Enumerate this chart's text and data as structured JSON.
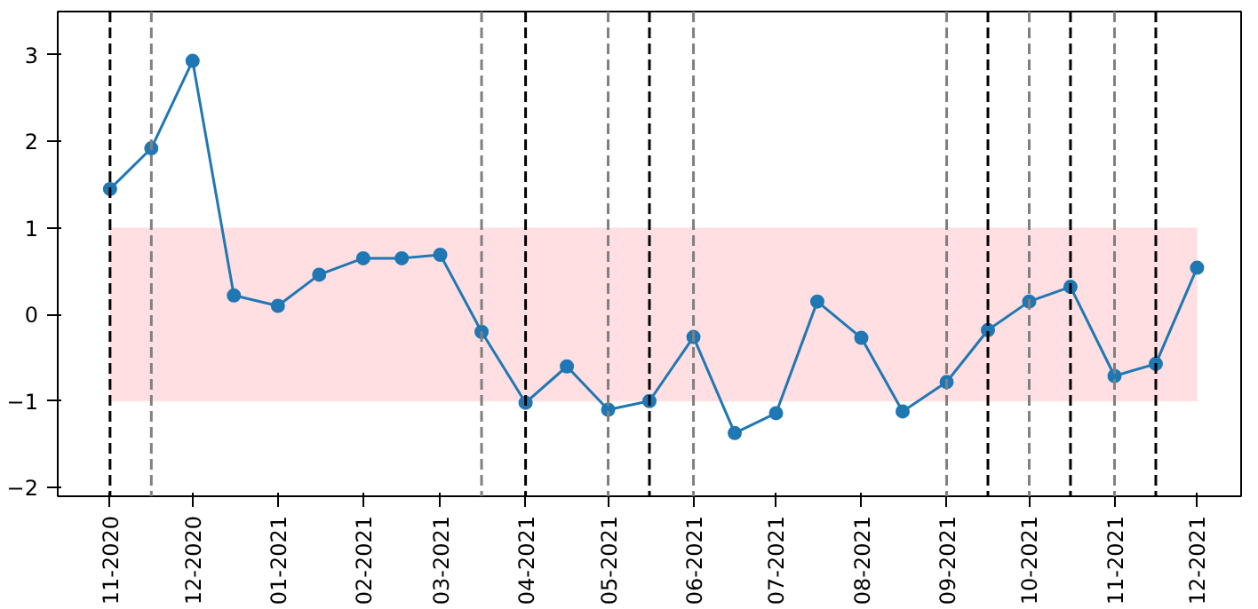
{
  "chart_data": {
    "type": "line",
    "marker": "circle",
    "line_style": "solid",
    "grid": false,
    "x": [
      "2020-11-01",
      "2020-11-16",
      "2020-12-01",
      "2020-12-16",
      "2021-01-01",
      "2021-01-16",
      "2021-02-01",
      "2021-02-15",
      "2021-03-01",
      "2021-03-16",
      "2021-04-01",
      "2021-04-16",
      "2021-05-01",
      "2021-05-16",
      "2021-06-01",
      "2021-06-16",
      "2021-07-01",
      "2021-07-16",
      "2021-08-01",
      "2021-08-16",
      "2021-09-01",
      "2021-09-16",
      "2021-10-01",
      "2021-10-16",
      "2021-11-01",
      "2021-11-16",
      "2021-12-01"
    ],
    "series": [
      {
        "color": "#1f77b4",
        "values": [
          1.45,
          1.92,
          2.93,
          0.22,
          0.1,
          0.46,
          0.65,
          0.65,
          0.69,
          -0.2,
          -1.02,
          -0.6,
          -1.1,
          -1.0,
          -0.26,
          -1.37,
          -1.14,
          0.15,
          -0.27,
          -1.12,
          -0.78,
          -0.18,
          0.15,
          0.32,
          -0.71,
          -0.57,
          0.54
        ]
      }
    ],
    "xlim": [
      "2020-10-13",
      "2021-12-17"
    ],
    "ylim": [
      -2.1,
      3.5
    ],
    "xticks": [
      {
        "value": "2020-11-01",
        "label": "11-2020"
      },
      {
        "value": "2020-12-01",
        "label": "12-2020"
      },
      {
        "value": "2021-01-01",
        "label": "01-2021"
      },
      {
        "value": "2021-02-01",
        "label": "02-2021"
      },
      {
        "value": "2021-03-01",
        "label": "03-2021"
      },
      {
        "value": "2021-04-01",
        "label": "04-2021"
      },
      {
        "value": "2021-05-01",
        "label": "05-2021"
      },
      {
        "value": "2021-06-01",
        "label": "06-2021"
      },
      {
        "value": "2021-07-01",
        "label": "07-2021"
      },
      {
        "value": "2021-08-01",
        "label": "08-2021"
      },
      {
        "value": "2021-09-01",
        "label": "09-2021"
      },
      {
        "value": "2021-10-01",
        "label": "10-2021"
      },
      {
        "value": "2021-11-01",
        "label": "11-2021"
      },
      {
        "value": "2021-12-01",
        "label": "12-2021"
      }
    ],
    "yticks": [
      -2,
      -1,
      0,
      1,
      2,
      3
    ],
    "bands": [
      {
        "axis": "y",
        "from": -1,
        "to": 1,
        "color": "#ffdfe1"
      }
    ],
    "ref_lines": [
      {
        "axis": "x",
        "value": "2020-11-01",
        "color": "#000000",
        "line_style": "dashed"
      },
      {
        "axis": "x",
        "value": "2020-11-16",
        "color": "#808080",
        "line_style": "dashed"
      },
      {
        "axis": "x",
        "value": "2021-03-16",
        "color": "#808080",
        "line_style": "dashed"
      },
      {
        "axis": "x",
        "value": "2021-04-01",
        "color": "#000000",
        "line_style": "dashed"
      },
      {
        "axis": "x",
        "value": "2021-05-01",
        "color": "#808080",
        "line_style": "dashed"
      },
      {
        "axis": "x",
        "value": "2021-05-16",
        "color": "#000000",
        "line_style": "dashed"
      },
      {
        "axis": "x",
        "value": "2021-06-01",
        "color": "#808080",
        "line_style": "dashed"
      },
      {
        "axis": "x",
        "value": "2021-09-01",
        "color": "#808080",
        "line_style": "dashed"
      },
      {
        "axis": "x",
        "value": "2021-09-16",
        "color": "#000000",
        "line_style": "dashed"
      },
      {
        "axis": "x",
        "value": "2021-10-01",
        "color": "#808080",
        "line_style": "dashed"
      },
      {
        "axis": "x",
        "value": "2021-10-16",
        "color": "#000000",
        "line_style": "dashed"
      },
      {
        "axis": "x",
        "value": "2021-11-01",
        "color": "#808080",
        "line_style": "dashed"
      },
      {
        "axis": "x",
        "value": "2021-11-16",
        "color": "#000000",
        "line_style": "dashed"
      }
    ]
  }
}
